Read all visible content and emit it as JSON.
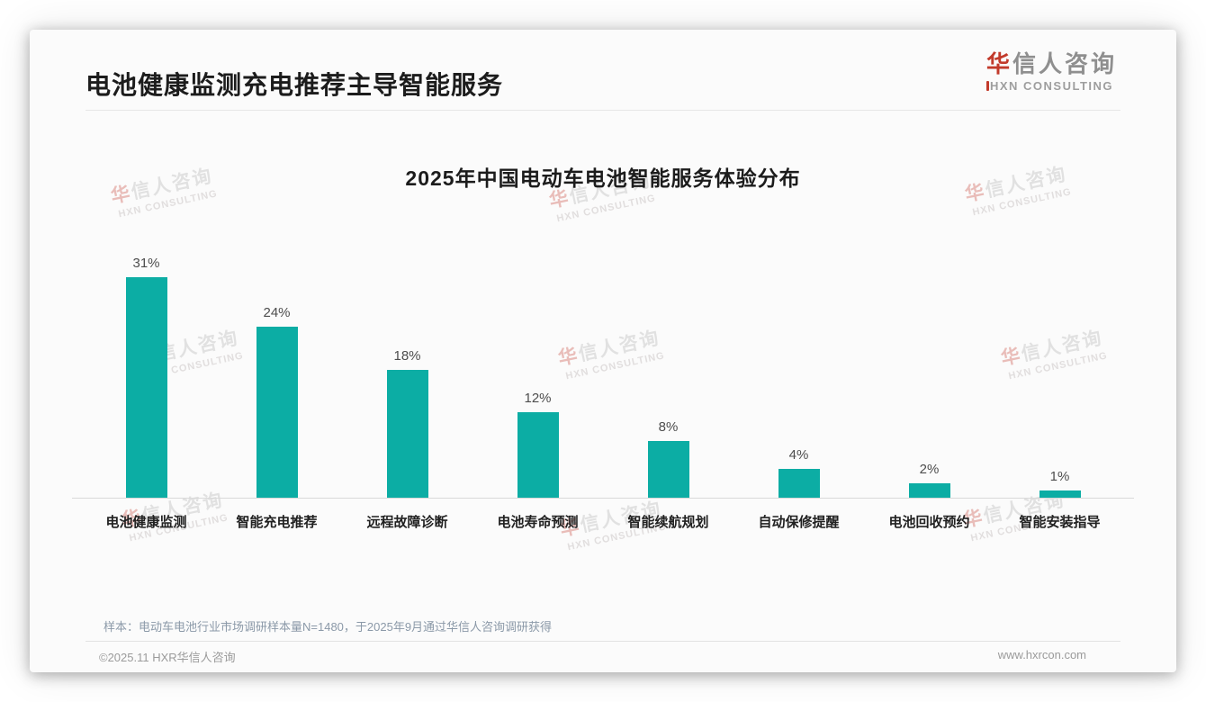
{
  "header": {
    "title": "电池健康监测充电推荐主导智能服务",
    "logo": {
      "brand_accent": "华",
      "brand_rest": "信人咨询",
      "subtitle": "XN CONSULTING"
    }
  },
  "chart_data": {
    "type": "bar",
    "title": "2025年中国电动车电池智能服务体验分布",
    "categories": [
      "电池健康监测",
      "智能充电推荐",
      "远程故障诊断",
      "电池寿命预测",
      "智能续航规划",
      "自动保修提醒",
      "电池回收预约",
      "智能安装指导"
    ],
    "values": [
      31,
      24,
      18,
      12,
      8,
      4,
      2,
      1
    ],
    "value_labels": [
      "31%",
      "24%",
      "18%",
      "12%",
      "8%",
      "4%",
      "2%",
      "1%"
    ],
    "bar_color": "#0cada4",
    "xlabel": "",
    "ylabel": "",
    "ylim": [
      0,
      33
    ],
    "grid": false,
    "legend": false
  },
  "watermark": {
    "line1_accent": "华",
    "line1_rest": "信人咨询",
    "line2": "HXN CONSULTING"
  },
  "footnote": "样本：电动车电池行业市场调研样本量N=1480，于2025年9月通过华信人咨询调研获得",
  "footer": {
    "left": "©2025.11 HXR华信人咨询",
    "right": "www.hxrcon.com"
  },
  "colors": {
    "bar": "#0cada4",
    "brand_red": "#c23a2b",
    "title_text": "#1c1c1c"
  }
}
